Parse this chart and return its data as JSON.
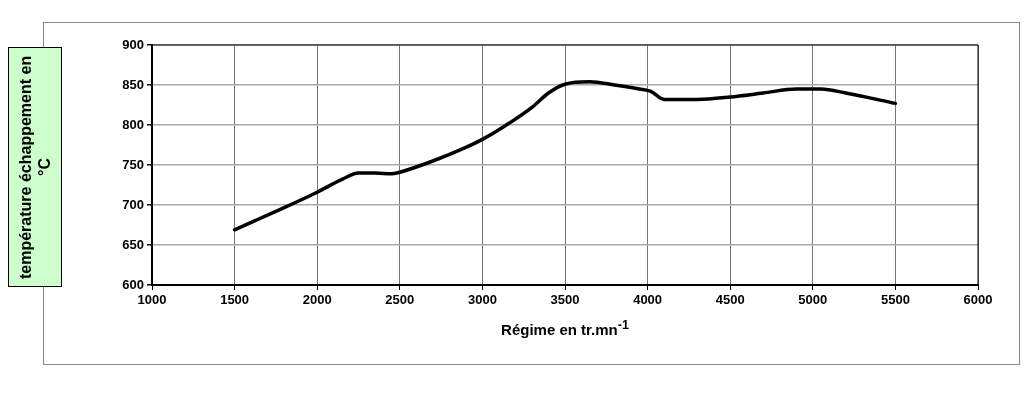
{
  "chart_data": {
    "type": "line",
    "xlabel": "Régime  en  tr.mn$^{-1}$",
    "ylabel": "température  échappement en °C",
    "x": [
      1500,
      1750,
      2000,
      2150,
      2250,
      2350,
      2450,
      2500,
      2700,
      2900,
      3000,
      3100,
      3300,
      3400,
      3500,
      3650,
      3800,
      3950,
      4020,
      4100,
      4300,
      4500,
      4700,
      4900,
      5050,
      5200,
      5500
    ],
    "series": [
      {
        "color": "#000000",
        "values": [
          669,
          692,
          716,
          732,
          740,
          740,
          739,
          741,
          755,
          772,
          782,
          794,
          822,
          840,
          851,
          854,
          850,
          845,
          842,
          832,
          832,
          835,
          840,
          845,
          845,
          840,
          827
        ]
      }
    ],
    "xlim": [
      1000,
      6000
    ],
    "xticks": [
      1000,
      1500,
      2000,
      2500,
      3000,
      3500,
      4000,
      4500,
      5000,
      5500,
      6000
    ],
    "ylim": [
      600,
      900
    ],
    "yticks": [
      600,
      650,
      700,
      750,
      800,
      850,
      900
    ],
    "grid": true,
    "legend": false,
    "marker": "none",
    "line_style": "solid"
  }
}
